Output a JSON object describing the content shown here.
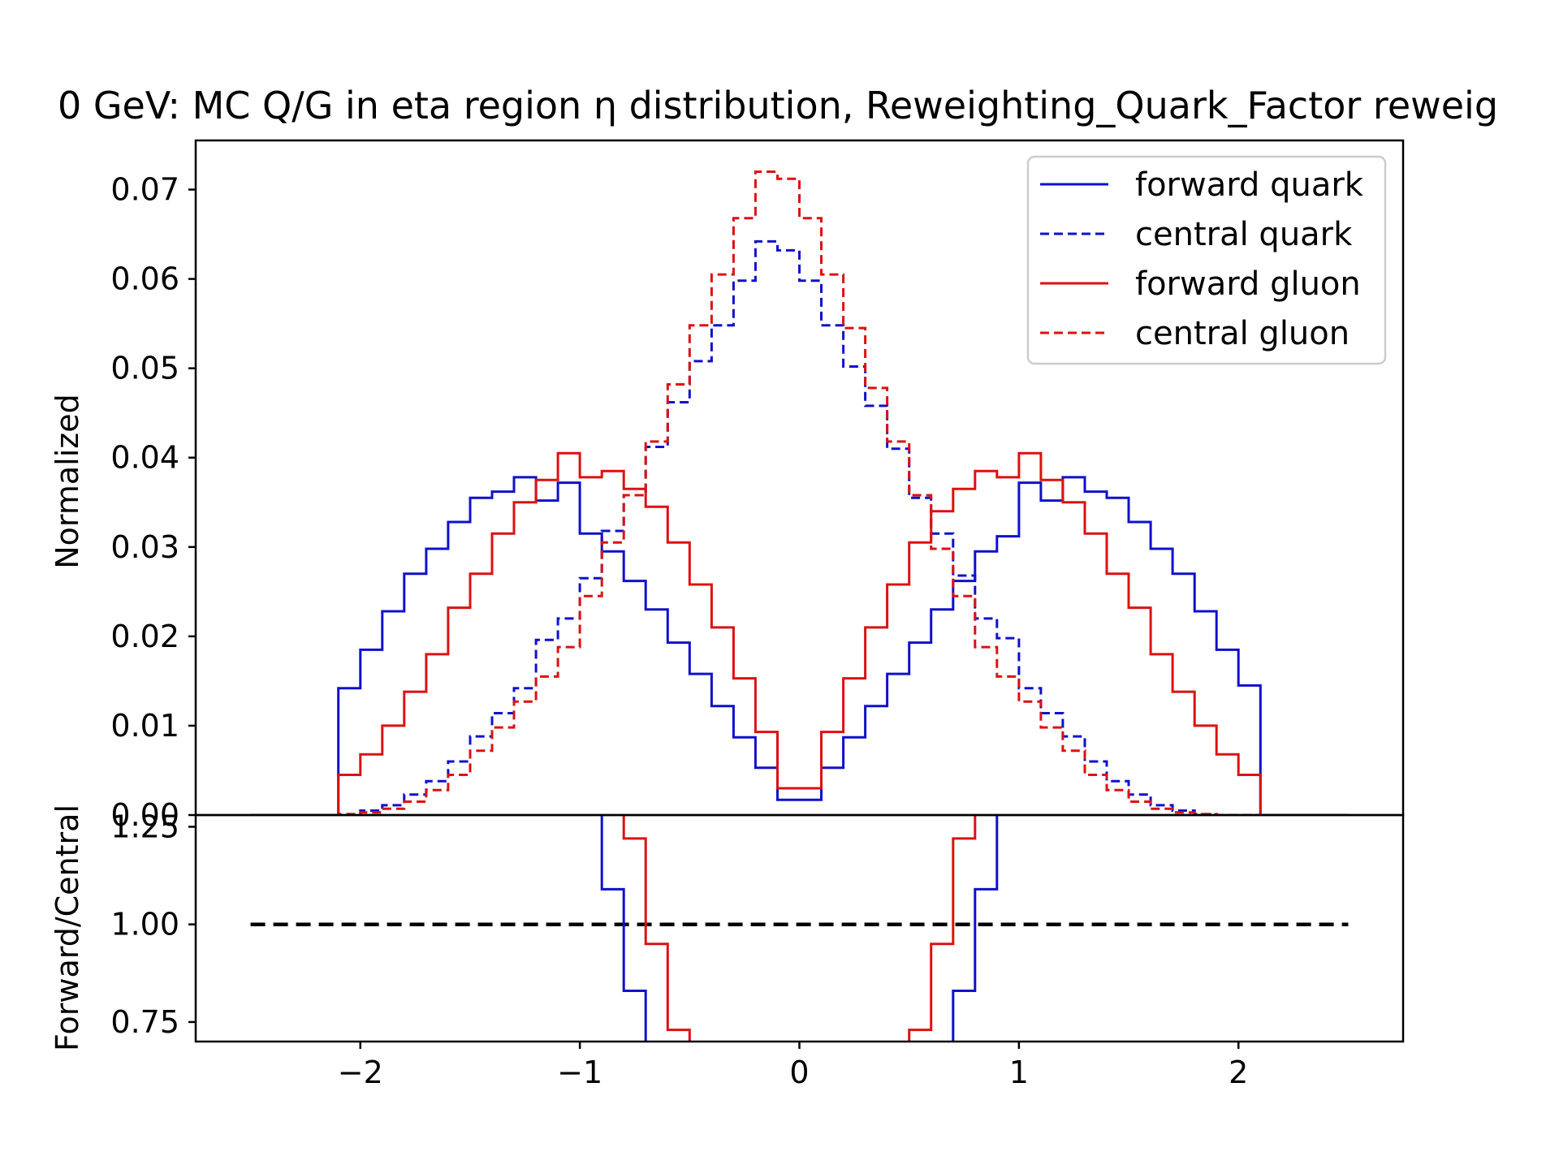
{
  "chart_data": {
    "type": "line",
    "title": "0 GeV: MC Q/G in eta region η distribution, Reweighting_Quark_Factor reweig",
    "colors": {
      "quark": "#1010cc",
      "gluon": "#dd1111",
      "reference": "#000000"
    },
    "top_panel": {
      "ylabel": "Normalized",
      "xlim": [
        -2.75,
        2.75
      ],
      "ylim": [
        0.0,
        0.0755
      ],
      "yticks": [
        "0.00",
        "0.01",
        "0.02",
        "0.03",
        "0.04",
        "0.05",
        "0.06",
        "0.07"
      ],
      "legend_position": "top-right",
      "bin_edges": [
        -2.5,
        -2.4,
        -2.3,
        -2.2,
        -2.1,
        -2.0,
        -1.9,
        -1.8,
        -1.7,
        -1.6,
        -1.5,
        -1.4,
        -1.3,
        -1.2,
        -1.1,
        -1.0,
        -0.9,
        -0.8,
        -0.7,
        -0.6,
        -0.5,
        -0.4,
        -0.3,
        -0.2,
        -0.1,
        0.0,
        0.1,
        0.2,
        0.3,
        0.4,
        0.5,
        0.6,
        0.7,
        0.8,
        0.9,
        1.0,
        1.1,
        1.2,
        1.3,
        1.4,
        1.5,
        1.6,
        1.7,
        1.8,
        1.9,
        2.0,
        2.1,
        2.2,
        2.3,
        2.4,
        2.5
      ],
      "series": [
        {
          "name": "forward quark",
          "color": "#1010cc",
          "dashed": false,
          "values": [
            0,
            0,
            0,
            0,
            0.0142,
            0.0185,
            0.0228,
            0.027,
            0.0298,
            0.0328,
            0.0355,
            0.0362,
            0.0378,
            0.0352,
            0.0372,
            0.0315,
            0.0295,
            0.0262,
            0.023,
            0.0193,
            0.0158,
            0.0122,
            0.0087,
            0.0053,
            0.0017,
            0.0017,
            0.0053,
            0.0087,
            0.0122,
            0.0158,
            0.0193,
            0.023,
            0.0262,
            0.0295,
            0.0312,
            0.0372,
            0.0352,
            0.0378,
            0.0362,
            0.0355,
            0.0328,
            0.0298,
            0.027,
            0.0228,
            0.0185,
            0.0145,
            0,
            0,
            0,
            0
          ]
        },
        {
          "name": "central quark",
          "color": "#1010cc",
          "dashed": true,
          "values": [
            0,
            0,
            0,
            0,
            0.0001,
            0.0005,
            0.0011,
            0.0023,
            0.0038,
            0.006,
            0.0088,
            0.0114,
            0.0142,
            0.0196,
            0.022,
            0.0265,
            0.0318,
            0.0358,
            0.0412,
            0.0462,
            0.0508,
            0.0548,
            0.0598,
            0.0642,
            0.0632,
            0.0598,
            0.0548,
            0.0502,
            0.0458,
            0.041,
            0.0355,
            0.0315,
            0.0268,
            0.022,
            0.0198,
            0.0142,
            0.0114,
            0.0088,
            0.006,
            0.0038,
            0.0023,
            0.0011,
            0.0005,
            0.0001,
            0,
            0,
            0,
            0,
            0,
            0
          ]
        },
        {
          "name": "forward gluon",
          "color": "#dd1111",
          "dashed": false,
          "values": [
            0,
            0,
            0,
            0,
            0.0045,
            0.0068,
            0.01,
            0.0138,
            0.018,
            0.0232,
            0.027,
            0.0315,
            0.035,
            0.0375,
            0.0405,
            0.0378,
            0.0385,
            0.0365,
            0.0345,
            0.0305,
            0.0258,
            0.021,
            0.0153,
            0.0093,
            0.003,
            0.003,
            0.0093,
            0.0153,
            0.021,
            0.0258,
            0.0305,
            0.034,
            0.0365,
            0.0385,
            0.0378,
            0.0405,
            0.0375,
            0.035,
            0.0315,
            0.027,
            0.0232,
            0.018,
            0.0138,
            0.01,
            0.0068,
            0.0045,
            0,
            0,
            0,
            0
          ]
        },
        {
          "name": "central gluon",
          "color": "#dd1111",
          "dashed": true,
          "values": [
            0,
            0,
            0,
            0,
            0.0001,
            0.0003,
            0.0007,
            0.0015,
            0.0028,
            0.0045,
            0.0072,
            0.0098,
            0.0127,
            0.0155,
            0.0188,
            0.0245,
            0.0305,
            0.0358,
            0.0418,
            0.0482,
            0.0548,
            0.0605,
            0.0668,
            0.072,
            0.0712,
            0.0668,
            0.0605,
            0.0545,
            0.0478,
            0.0418,
            0.0358,
            0.0298,
            0.0245,
            0.0188,
            0.0155,
            0.0127,
            0.0098,
            0.0072,
            0.0045,
            0.0028,
            0.0015,
            0.0007,
            0.0003,
            0.0001,
            0,
            0,
            0,
            0,
            0,
            0
          ]
        }
      ]
    },
    "bottom_panel": {
      "ylabel": "Forward/Central",
      "xlim": [
        -2.75,
        2.75
      ],
      "ylim": [
        0.7,
        1.28
      ],
      "yticks": [
        "0.75",
        "1.00",
        "1.25"
      ],
      "xticks": [
        "−2",
        "−1",
        "0",
        "1",
        "2"
      ],
      "reference_line": {
        "y": 1.0,
        "x_range": [
          -2.5,
          2.5
        ],
        "dashed": true,
        "color": "#000000"
      },
      "bin_edges": [
        -2.1,
        -0.9,
        -0.8,
        -0.7,
        -0.6,
        -0.5,
        0.5,
        0.6,
        0.7,
        0.8,
        0.9,
        2.1
      ],
      "series": [
        {
          "name": "forward quark / central quark",
          "color": "#1010cc",
          "values": [
            3.0,
            1.09,
            0.83,
            0.64,
            0.5,
            0.3,
            0.5,
            0.64,
            0.83,
            1.09,
            3.0
          ]
        },
        {
          "name": "forward gluon / central gluon",
          "color": "#dd1111",
          "values": [
            3.0,
            1.4,
            1.22,
            0.95,
            0.73,
            0.5,
            0.73,
            0.95,
            1.22,
            1.4,
            3.0
          ]
        }
      ]
    }
  }
}
